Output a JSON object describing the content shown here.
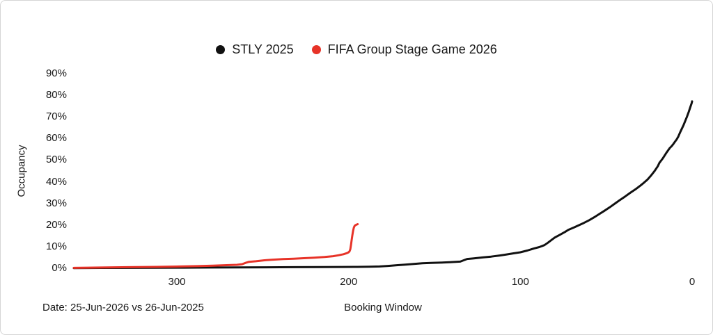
{
  "footer": {
    "date_note": "Date: 25-Jun-2026 vs 26-Jun-2025"
  },
  "chart_data": {
    "type": "line",
    "title": "",
    "xlabel": "Booking Window",
    "ylabel": "Occupancy",
    "grid": false,
    "legend_position": "top-center",
    "x_axis": {
      "ticks": [
        300,
        200,
        100,
        0
      ],
      "range": [
        360,
        0
      ],
      "reversed": true,
      "unit": "days"
    },
    "y_axis": {
      "ticks": [
        90,
        80,
        70,
        60,
        50,
        40,
        30,
        20,
        10,
        0
      ],
      "range": [
        0,
        90
      ],
      "unit": "%",
      "tick_suffix": "%"
    },
    "series": [
      {
        "name": "STLY 2025",
        "color": "#111111",
        "points": [
          [
            360,
            0.1
          ],
          [
            344,
            0.15
          ],
          [
            328,
            0.2
          ],
          [
            312,
            0.25
          ],
          [
            296,
            0.3
          ],
          [
            280,
            0.35
          ],
          [
            264,
            0.4
          ],
          [
            248,
            0.45
          ],
          [
            232,
            0.5
          ],
          [
            216,
            0.55
          ],
          [
            204,
            0.6
          ],
          [
            195,
            0.65
          ],
          [
            188,
            0.7
          ],
          [
            182,
            0.85
          ],
          [
            177,
            1.1
          ],
          [
            172,
            1.4
          ],
          [
            167,
            1.7
          ],
          [
            162,
            2.0
          ],
          [
            157,
            2.3
          ],
          [
            152,
            2.5
          ],
          [
            147,
            2.6
          ],
          [
            141,
            2.8
          ],
          [
            135,
            3.1
          ],
          [
            131,
            4.3
          ],
          [
            127,
            4.6
          ],
          [
            122,
            5.0
          ],
          [
            117,
            5.4
          ],
          [
            112,
            5.9
          ],
          [
            108,
            6.4
          ],
          [
            104,
            6.9
          ],
          [
            100,
            7.4
          ],
          [
            96,
            8.2
          ],
          [
            92,
            9.2
          ],
          [
            89,
            9.8
          ],
          [
            86,
            10.7
          ],
          [
            84,
            11.8
          ],
          [
            82,
            13.0
          ],
          [
            80,
            14.2
          ],
          [
            77,
            15.5
          ],
          [
            74,
            16.8
          ],
          [
            72,
            17.8
          ],
          [
            69,
            18.8
          ],
          [
            66,
            19.9
          ],
          [
            63,
            21.0
          ],
          [
            60,
            22.2
          ],
          [
            57,
            23.6
          ],
          [
            54,
            25.1
          ],
          [
            51,
            26.6
          ],
          [
            48,
            28.2
          ],
          [
            45,
            29.9
          ],
          [
            42,
            31.6
          ],
          [
            39,
            33.2
          ],
          [
            36,
            34.9
          ],
          [
            33,
            36.5
          ],
          [
            30,
            38.3
          ],
          [
            28,
            39.6
          ],
          [
            26,
            41.0
          ],
          [
            24,
            42.8
          ],
          [
            22,
            44.8
          ],
          [
            20,
            47.2
          ],
          [
            19,
            48.8
          ],
          [
            17,
            50.9
          ],
          [
            15,
            53.4
          ],
          [
            13,
            55.6
          ],
          [
            12,
            56.4
          ],
          [
            11,
            57.4
          ],
          [
            10,
            58.5
          ],
          [
            9,
            59.6
          ],
          [
            8,
            61.0
          ],
          [
            7,
            62.8
          ],
          [
            6,
            64.5
          ],
          [
            5,
            66.2
          ],
          [
            4,
            68.1
          ],
          [
            3,
            70.1
          ],
          [
            2,
            72.3
          ],
          [
            1,
            74.6
          ],
          [
            0.3,
            76.3
          ],
          [
            0,
            77.2
          ]
        ]
      },
      {
        "name": "FIFA Group Stage Game 2026",
        "color": "#e73328",
        "points": [
          [
            360,
            0.2
          ],
          [
            344,
            0.35
          ],
          [
            328,
            0.5
          ],
          [
            312,
            0.65
          ],
          [
            298,
            0.85
          ],
          [
            288,
            1.0
          ],
          [
            279,
            1.2
          ],
          [
            271,
            1.45
          ],
          [
            265,
            1.6
          ],
          [
            262,
            1.9
          ],
          [
            260,
            2.5
          ],
          [
            258,
            3.0
          ],
          [
            254,
            3.25
          ],
          [
            249,
            3.7
          ],
          [
            244,
            4.0
          ],
          [
            238,
            4.25
          ],
          [
            232,
            4.45
          ],
          [
            226,
            4.65
          ],
          [
            220,
            4.9
          ],
          [
            214,
            5.2
          ],
          [
            209,
            5.6
          ],
          [
            206,
            6.0
          ],
          [
            203,
            6.5
          ],
          [
            201,
            7.0
          ],
          [
            200,
            7.4
          ],
          [
            199.4,
            7.9
          ],
          [
            199,
            8.8
          ],
          [
            198.6,
            10.8
          ],
          [
            198.2,
            13.2
          ],
          [
            197.8,
            15.4
          ],
          [
            197.4,
            17.3
          ],
          [
            197,
            18.7
          ],
          [
            196.6,
            19.5
          ],
          [
            196.1,
            19.9
          ],
          [
            195.4,
            20.2
          ],
          [
            194.7,
            20.4
          ]
        ]
      }
    ]
  }
}
